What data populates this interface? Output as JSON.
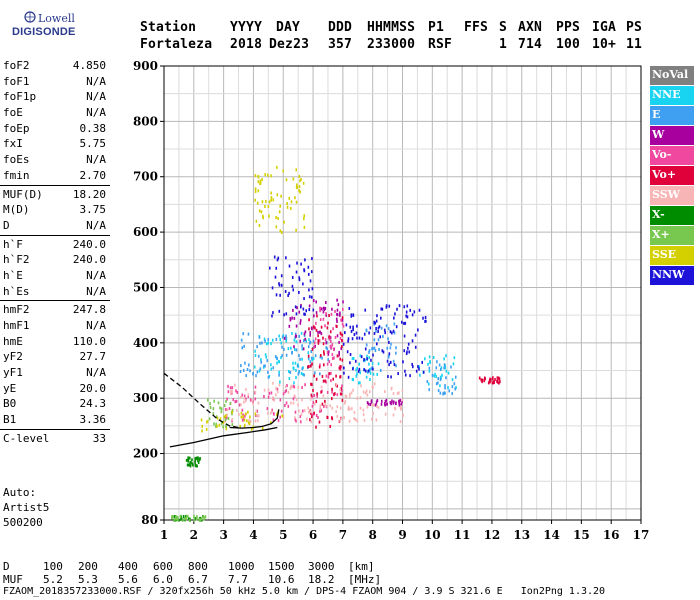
{
  "logo": {
    "line1": "Lowell",
    "line2": "DIGISONDE"
  },
  "header": {
    "labels": [
      "Station",
      "YYYY",
      "DAY",
      "DDD",
      "HHMMSS",
      "P1",
      "FFS",
      "S",
      "AXN",
      "PPS",
      "IGA",
      "PS"
    ],
    "values": [
      "Fortaleza",
      "2018",
      "Dez23",
      "357",
      "233000",
      "RSF",
      "1",
      "714",
      "100",
      "10+",
      "11"
    ]
  },
  "parameters": [
    {
      "group": [
        {
          "name": "foF2",
          "value": "4.850"
        },
        {
          "name": "foF1",
          "value": "N/A"
        },
        {
          "name": "foF1p",
          "value": "N/A"
        },
        {
          "name": "foE",
          "value": "N/A"
        },
        {
          "name": "foEp",
          "value": "0.38"
        },
        {
          "name": "fxI",
          "value": "5.75"
        },
        {
          "name": "foEs",
          "value": "N/A"
        },
        {
          "name": "fmin",
          "value": "2.70"
        }
      ]
    },
    {
      "group": [
        {
          "name": "MUF(D)",
          "value": "18.20"
        },
        {
          "name": "M(D)",
          "value": "3.75"
        },
        {
          "name": "D",
          "value": "N/A"
        }
      ]
    },
    {
      "group": [
        {
          "name": "h`F",
          "value": "240.0"
        },
        {
          "name": "h`F2",
          "value": "240.0"
        },
        {
          "name": "h`E",
          "value": "N/A"
        },
        {
          "name": "h`Es",
          "value": "N/A"
        }
      ]
    },
    {
      "group": [
        {
          "name": "hmF2",
          "value": "247.8"
        },
        {
          "name": "hmF1",
          "value": "N/A"
        },
        {
          "name": "hmE",
          "value": "110.0"
        },
        {
          "name": "yF2",
          "value": "27.7"
        },
        {
          "name": "yF1",
          "value": "N/A"
        },
        {
          "name": "yE",
          "value": "20.0"
        },
        {
          "name": "B0",
          "value": "24.3"
        },
        {
          "name": "B1",
          "value": "3.36"
        }
      ]
    },
    {
      "group": [
        {
          "name": "C-level",
          "value": "33"
        }
      ]
    }
  ],
  "auto": {
    "line1": "Auto:",
    "line2": "Artist5",
    "line3": "500200"
  },
  "legend": [
    {
      "label": "NoVal",
      "color": "#808080"
    },
    {
      "label": "NNE",
      "color": "#19d4f0"
    },
    {
      "label": "E",
      "color": "#3f9ff0"
    },
    {
      "label": "W",
      "color": "#a8009f"
    },
    {
      "label": "Vo-",
      "color": "#f0479f"
    },
    {
      "label": "Vo+",
      "color": "#e0003a"
    },
    {
      "label": "SSW",
      "color": "#f7b5b5"
    },
    {
      "label": "X-",
      "color": "#008c00"
    },
    {
      "label": "X+",
      "color": "#78c850"
    },
    {
      "label": "SSE",
      "color": "#d4d000"
    },
    {
      "label": "NNW",
      "color": "#1c12d8"
    }
  ],
  "muf_table": {
    "d_label": "D",
    "d_values": [
      "100",
      "200",
      "400",
      "600",
      "800",
      "1000",
      "1500",
      "3000",
      "[km]"
    ],
    "muf_label": "MUF",
    "muf_values": [
      "5.2",
      "5.3",
      "5.6",
      "6.0",
      "6.7",
      "7.7",
      "10.6",
      "18.2",
      "[MHz]"
    ]
  },
  "footer": "FZAOM_2018357233000.RSF / 320fx256h 50 kHz 5.0 km / DPS-4 FZAOM 904 / 3.9 S 321.6 E   Ion2Png 1.3.20",
  "chart_data": {
    "type": "scatter",
    "title": "",
    "xlabel": "",
    "ylabel": "",
    "xlim": [
      1,
      17
    ],
    "ylim": [
      80,
      900
    ],
    "x_ticks": [
      "1",
      "2",
      "3",
      "4",
      "5",
      "6",
      "7",
      "8",
      "9",
      "10",
      "11",
      "12",
      "13",
      "14",
      "15",
      "16",
      "17"
    ],
    "y_ticks": [
      "80",
      "200",
      "300",
      "400",
      "500",
      "600",
      "700",
      "800",
      "900"
    ],
    "grid": true,
    "legend_position": "right",
    "series": [
      {
        "name": "NNE",
        "regions": [
          {
            "x": [
              4.0,
              6.0
            ],
            "y": [
              330,
              420
            ]
          },
          {
            "x": [
              7.2,
              8.2
            ],
            "y": [
              330,
              380
            ]
          },
          {
            "x": [
              9.5,
              10.8
            ],
            "y": [
              320,
              380
            ]
          }
        ]
      },
      {
        "name": "E",
        "regions": [
          {
            "x": [
              3.5,
              6.5
            ],
            "y": [
              340,
              420
            ]
          },
          {
            "x": [
              7.6,
              8.8
            ],
            "y": [
              350,
              440
            ]
          },
          {
            "x": [
              9.8,
              10.8
            ],
            "y": [
              310,
              370
            ]
          }
        ]
      },
      {
        "name": "W",
        "regions": [
          {
            "x": [
              5.0,
              7.0
            ],
            "y": [
              380,
              480
            ]
          },
          {
            "x": [
              7.8,
              9.0
            ],
            "y": [
              290,
              300
            ]
          }
        ]
      },
      {
        "name": "Vo-",
        "regions": [
          {
            "x": [
              3.0,
              6.5
            ],
            "y": [
              260,
              330
            ]
          },
          {
            "x": [
              6.0,
              7.0
            ],
            "y": [
              300,
              470
            ]
          }
        ]
      },
      {
        "name": "Vo+",
        "regions": [
          {
            "x": [
              5.8,
              7.0
            ],
            "y": [
              250,
              460
            ]
          },
          {
            "x": [
              11.5,
              12.3
            ],
            "y": [
              330,
              340
            ]
          }
        ]
      },
      {
        "name": "SSW",
        "regions": [
          {
            "x": [
              3.0,
              9.0
            ],
            "y": [
              260,
              330
            ]
          }
        ]
      },
      {
        "name": "X-",
        "regions": [
          {
            "x": [
              1.2,
              2.3
            ],
            "y": [
              82,
              90
            ]
          },
          {
            "x": [
              1.7,
              2.2
            ],
            "y": [
              180,
              195
            ]
          }
        ]
      },
      {
        "name": "X+",
        "regions": [
          {
            "x": [
              1.2,
              2.4
            ],
            "y": [
              82,
              90
            ]
          },
          {
            "x": [
              2.4,
              3.3
            ],
            "y": [
              250,
              300
            ]
          }
        ]
      },
      {
        "name": "SSE",
        "regions": [
          {
            "x": [
              2.2,
              5.0
            ],
            "y": [
              240,
              280
            ]
          },
          {
            "x": [
              4.0,
              5.7
            ],
            "y": [
              600,
              720
            ]
          }
        ]
      },
      {
        "name": "NNW",
        "regions": [
          {
            "x": [
              7.0,
              9.8
            ],
            "y": [
              340,
              470
            ]
          },
          {
            "x": [
              4.5,
              6.0
            ],
            "y": [
              450,
              560
            ]
          }
        ]
      }
    ],
    "profile_curves": [
      {
        "name": "upper-trace",
        "x": [
          1.0,
          1.6,
          2.2,
          2.8,
          3.2,
          3.6
        ],
        "y": [
          345,
          320,
          290,
          262,
          250,
          246
        ]
      },
      {
        "name": "lower-trace",
        "x": [
          1.2,
          2.0,
          3.0,
          3.8,
          4.4,
          4.8
        ],
        "y": [
          212,
          220,
          232,
          238,
          243,
          247
        ]
      },
      {
        "name": "model-profile",
        "x": [
          3.2,
          3.6,
          4.0,
          4.3,
          4.6,
          4.8,
          4.85
        ],
        "y": [
          247,
          246,
          247,
          249,
          254,
          264,
          280
        ]
      }
    ]
  }
}
